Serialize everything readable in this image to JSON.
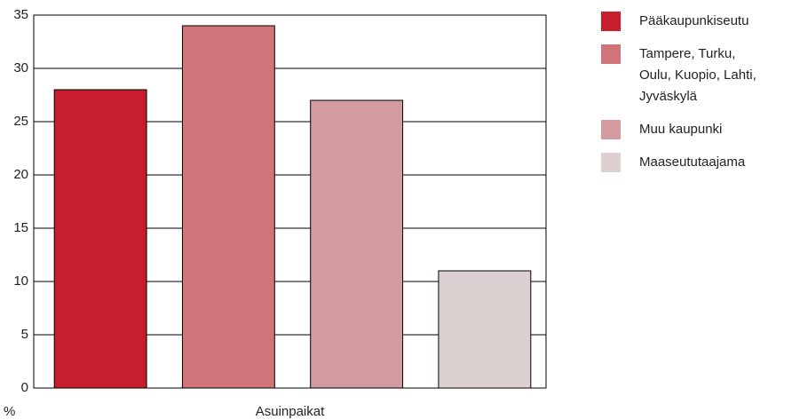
{
  "chart_data": {
    "type": "bar",
    "categories": [
      "Asuinpaikat"
    ],
    "ylabel": "%",
    "series": [
      {
        "name": "Pääkaupunkiseutu",
        "color": "#c61e2d",
        "values": [
          28
        ]
      },
      {
        "name": "Tampere, Turku, Oulu, Kuopio, Lahti, Jyväskylä",
        "color": "#d0747a",
        "values": [
          34
        ]
      },
      {
        "name": "Muu kaupunki",
        "color": "#d39aa0",
        "values": [
          27
        ]
      },
      {
        "name": "Maaseututaajama",
        "color": "#dcd0d1",
        "values": [
          11
        ]
      }
    ],
    "ylim": [
      0,
      35
    ],
    "yticks": [
      0,
      5,
      10,
      15,
      20,
      25,
      30,
      35
    ],
    "grid": true,
    "legend": "right"
  }
}
